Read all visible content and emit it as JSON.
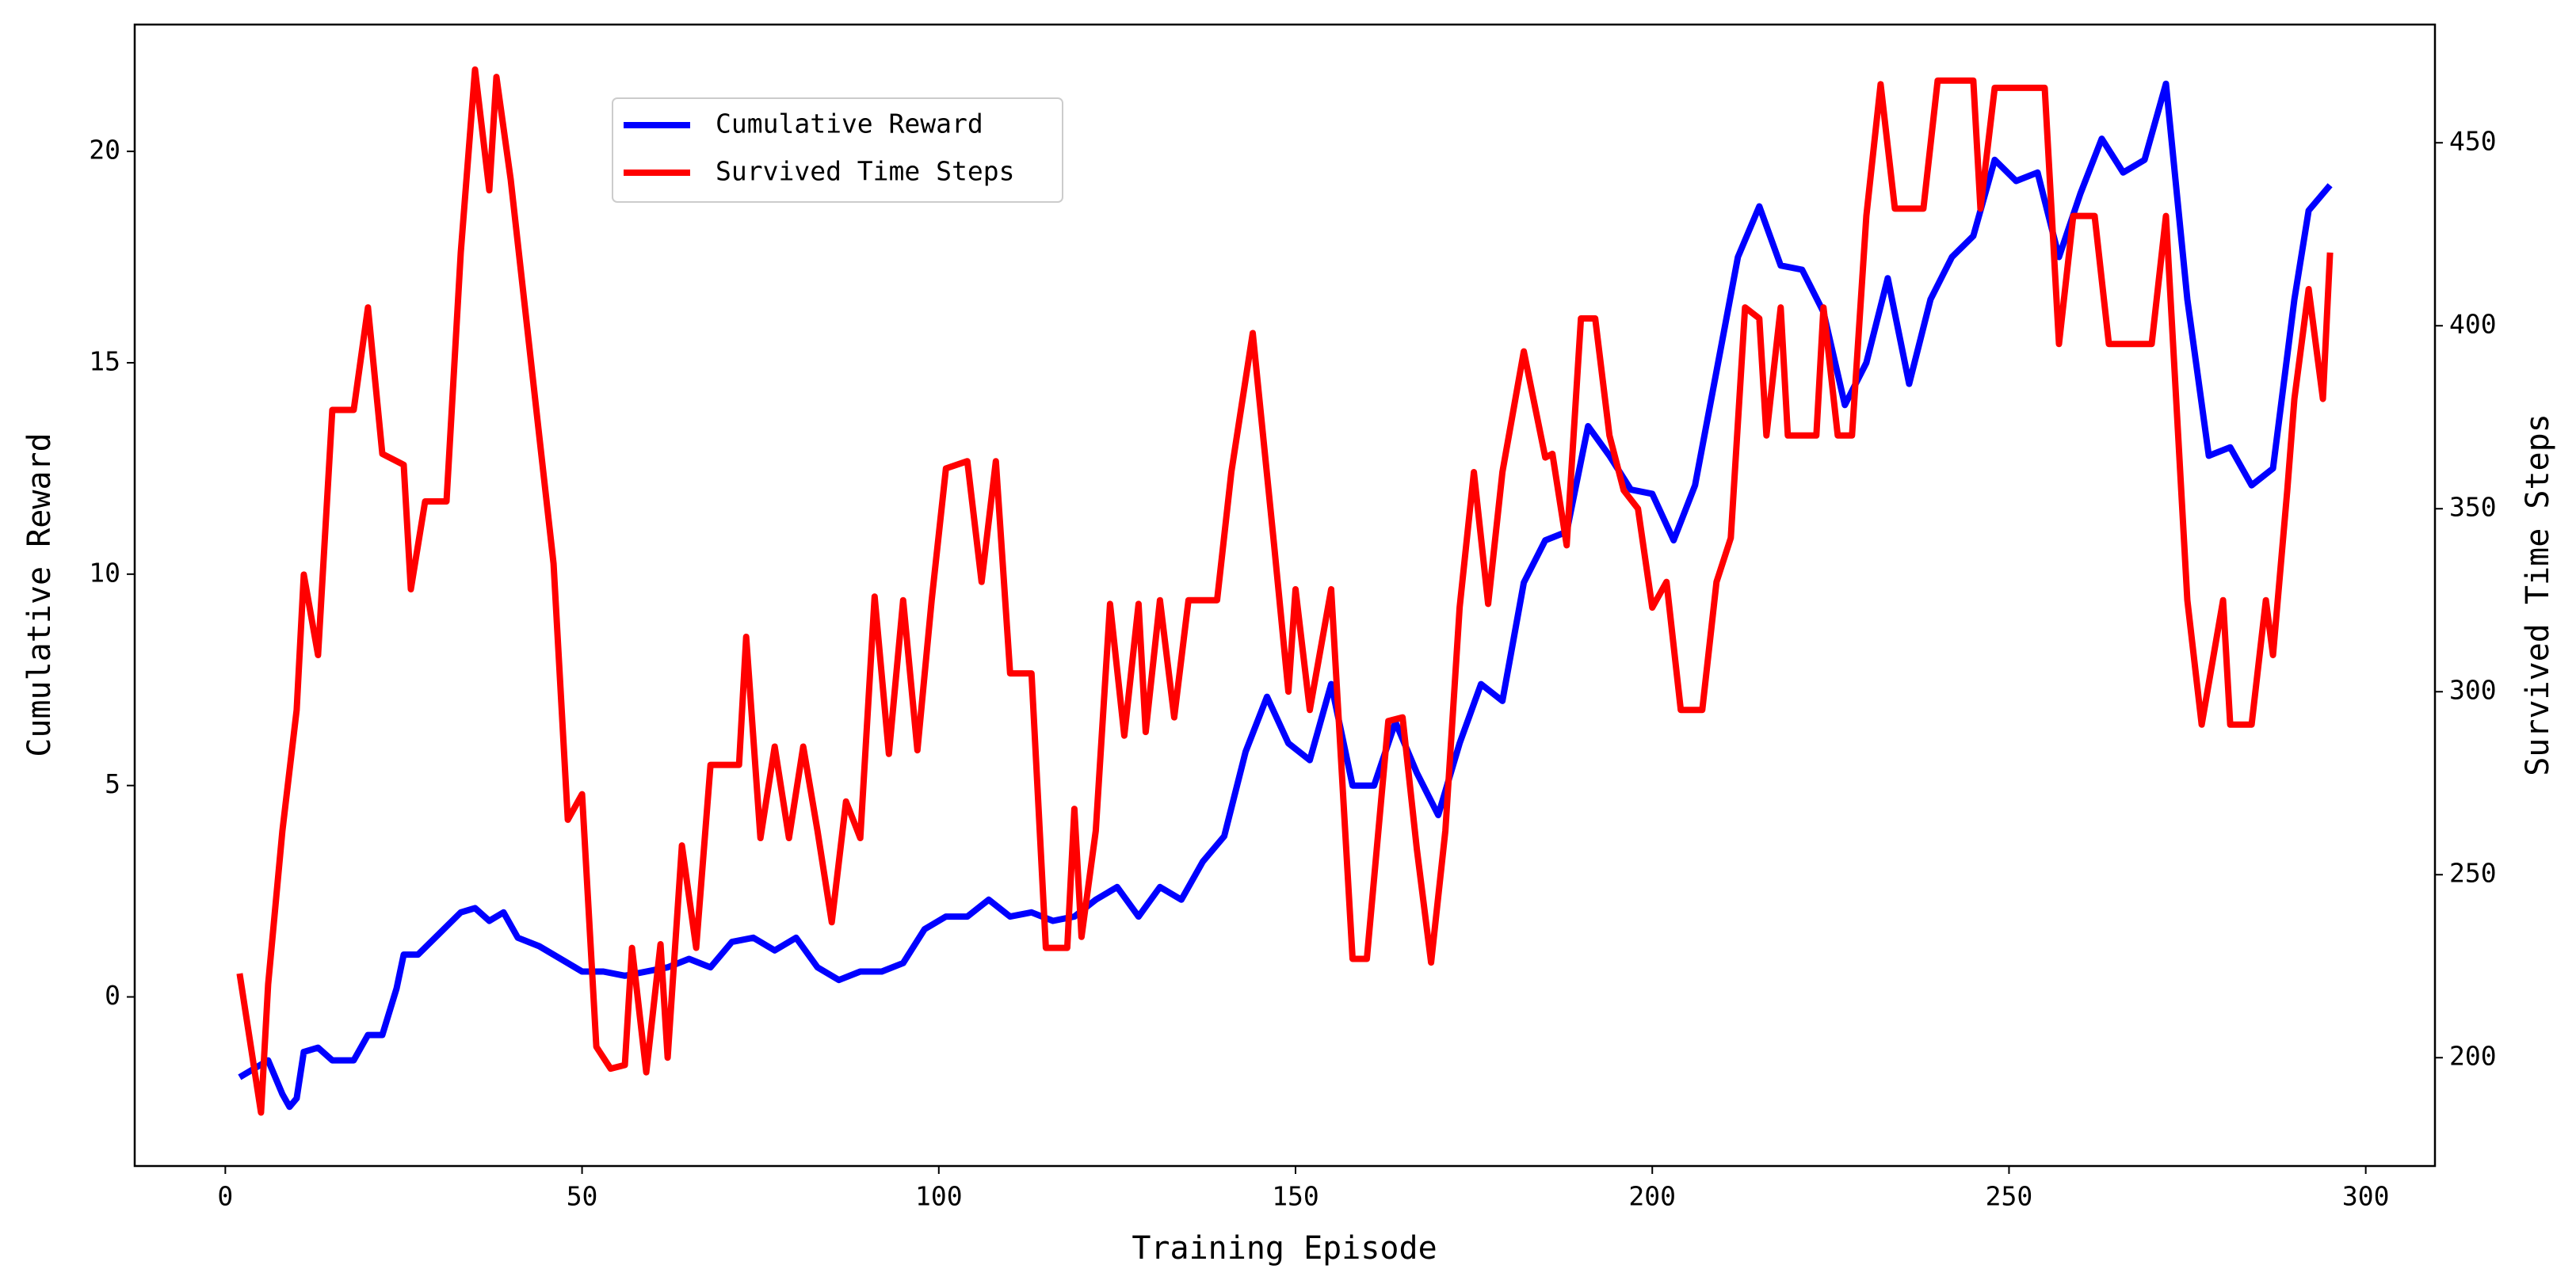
{
  "chart_data": {
    "type": "line",
    "xlabel": "Training Episode",
    "ylabel": "Cumulative Reward",
    "y2label": "Survived Time Steps",
    "xlim": [
      -12.7,
      309.7
    ],
    "xticks": [
      0,
      50,
      100,
      150,
      200,
      250,
      300
    ],
    "ylim": [
      -4.0,
      23.0
    ],
    "yticks": [
      0,
      5,
      10,
      15,
      20
    ],
    "y2lim": [
      170.4,
      482.3
    ],
    "y2ticks": [
      200,
      250,
      300,
      350,
      400,
      450
    ],
    "legend": "upper left",
    "series": [
      {
        "name": "Cumulative Reward",
        "color": "#0000ff",
        "axis": "y",
        "x": [
          2,
          5,
          6,
          8,
          9,
          10,
          11,
          13,
          15,
          18,
          20,
          22,
          24,
          25,
          27,
          30,
          33,
          35,
          37,
          39,
          41,
          44,
          47,
          50,
          53,
          56,
          59,
          62,
          65,
          68,
          71,
          74,
          77,
          80,
          83,
          86,
          89,
          92,
          95,
          98,
          101,
          104,
          107,
          110,
          113,
          116,
          119,
          122,
          125,
          128,
          131,
          134,
          137,
          140,
          143,
          146,
          149,
          152,
          155,
          158,
          161,
          164,
          167,
          170,
          173,
          176,
          179,
          182,
          185,
          188,
          191,
          194,
          197,
          200,
          203,
          206,
          209,
          212,
          215,
          218,
          221,
          224,
          227,
          230,
          233,
          236,
          239,
          242,
          245,
          248,
          251,
          254,
          257,
          260,
          263,
          266,
          269,
          272,
          275,
          278,
          281,
          284,
          287,
          290,
          292,
          295
        ],
        "values": [
          -1.9,
          -1.6,
          -1.5,
          -2.3,
          -2.6,
          -2.4,
          -1.3,
          -1.2,
          -1.5,
          -1.5,
          -0.9,
          -0.9,
          0.2,
          1.0,
          1.0,
          1.5,
          2.0,
          2.1,
          1.8,
          2.0,
          1.4,
          1.2,
          0.9,
          0.6,
          0.6,
          0.5,
          0.6,
          0.7,
          0.9,
          0.7,
          1.3,
          1.4,
          1.1,
          1.4,
          0.7,
          0.4,
          0.6,
          0.6,
          0.8,
          1.6,
          1.9,
          1.9,
          2.3,
          1.9,
          2.0,
          1.8,
          1.9,
          2.3,
          2.6,
          1.9,
          2.6,
          2.3,
          3.2,
          3.8,
          5.8,
          7.1,
          6.0,
          5.6,
          7.4,
          5.0,
          5.0,
          6.5,
          5.3,
          4.3,
          6.0,
          7.4,
          7.0,
          9.8,
          10.8,
          11.0,
          13.5,
          12.8,
          12.0,
          11.9,
          10.8,
          12.1,
          14.8,
          17.5,
          18.7,
          17.3,
          17.2,
          16.2,
          14.0,
          15.0,
          17.0,
          14.5,
          16.5,
          17.5,
          18.0,
          19.8,
          19.3,
          19.5,
          17.5,
          19.0,
          20.3,
          19.5,
          19.8,
          21.6,
          16.5,
          12.8,
          13.0,
          12.1,
          12.5,
          16.5,
          18.6,
          19.2
        ]
      },
      {
        "name": "Survived Time Steps",
        "color": "#ff0000",
        "axis": "y2",
        "x": [
          2,
          5,
          6,
          8,
          10,
          11,
          13,
          15,
          18,
          20,
          22,
          25,
          26,
          28,
          31,
          33,
          35,
          37,
          38,
          40,
          42,
          44,
          46,
          48,
          50,
          52,
          54,
          56,
          57,
          59,
          61,
          62,
          64,
          66,
          68,
          72,
          73,
          75,
          77,
          79,
          81,
          83,
          85,
          87,
          89,
          91,
          93,
          95,
          97,
          99,
          101,
          104,
          106,
          108,
          110,
          113,
          115,
          118,
          119,
          120,
          122,
          124,
          126,
          128,
          129,
          131,
          133,
          135,
          139,
          141,
          144,
          147,
          149,
          150,
          152,
          155,
          158,
          160,
          163,
          165,
          167,
          169,
          171,
          173,
          175,
          177,
          179,
          182,
          185,
          186,
          188,
          190,
          192,
          194,
          196,
          198,
          200,
          202,
          204,
          207,
          209,
          211,
          213,
          215,
          216,
          218,
          219,
          223,
          224,
          226,
          228,
          230,
          232,
          234,
          238,
          240,
          245,
          246,
          248,
          255,
          257,
          259,
          262,
          264,
          270,
          272,
          275,
          277,
          280,
          281,
          284,
          286,
          287,
          289,
          290,
          292,
          294,
          295
        ],
        "values": [
          223,
          185,
          220,
          262,
          295,
          332,
          310,
          377,
          377,
          405,
          365,
          362,
          328,
          352,
          352,
          420,
          470,
          437,
          468,
          440,
          405,
          370,
          335,
          265,
          272,
          203,
          197,
          198,
          230,
          196,
          231,
          200,
          258,
          230,
          280,
          280,
          315,
          260,
          285,
          260,
          285,
          262,
          237,
          270,
          260,
          326,
          283,
          325,
          284,
          325,
          361,
          363,
          330,
          363,
          305,
          305,
          230,
          230,
          268,
          233,
          262,
          324,
          288,
          324,
          289,
          325,
          293,
          325,
          325,
          360,
          398,
          340,
          300,
          328,
          295,
          328,
          227,
          227,
          292,
          293,
          257,
          226,
          262,
          323,
          360,
          324,
          360,
          393,
          364,
          365,
          340,
          402,
          402,
          370,
          355,
          350,
          323,
          330,
          295,
          295,
          330,
          342,
          405,
          402,
          370,
          405,
          370,
          370,
          405,
          370,
          370,
          430,
          466,
          432,
          432,
          467,
          467,
          432,
          465,
          465,
          395,
          430,
          430,
          395,
          395,
          430,
          325,
          291,
          325,
          291,
          291,
          325,
          310,
          355,
          380,
          410,
          380,
          420
        ]
      }
    ]
  }
}
